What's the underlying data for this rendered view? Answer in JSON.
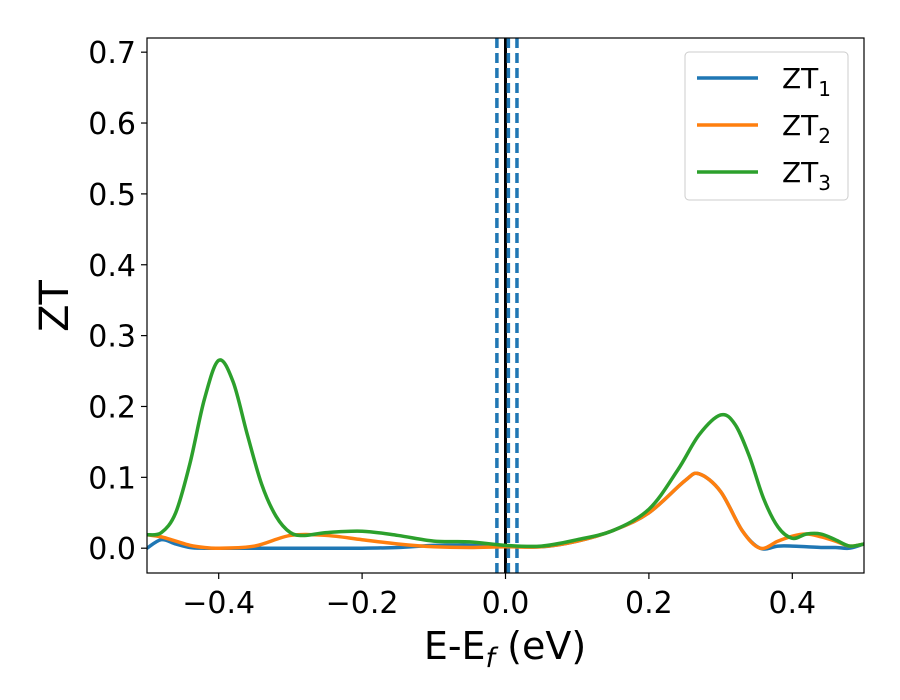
{
  "chart_data": {
    "type": "line",
    "xlabel": "E-E",
    "xlabel_sub": "f",
    "xlabel_unit": " (eV)",
    "ylabel": "ZT",
    "xlim": [
      -0.5,
      0.5
    ],
    "ylim": [
      -0.035,
      0.72
    ],
    "x_ticks": [
      -0.4,
      -0.2,
      0.0,
      0.2,
      0.4
    ],
    "x_tick_labels": [
      "−0.4",
      "−0.2",
      "0.0",
      "0.2",
      "0.4"
    ],
    "y_ticks": [
      0.0,
      0.1,
      0.2,
      0.3,
      0.4,
      0.5,
      0.6,
      0.7
    ],
    "y_tick_labels": [
      "0.0",
      "0.1",
      "0.2",
      "0.3",
      "0.4",
      "0.5",
      "0.6",
      "0.7"
    ],
    "grid": false,
    "legend_position": "top-right",
    "vertical_lines": [
      {
        "x": 0.0,
        "style": "solid",
        "color": "#000000"
      },
      {
        "x": -0.012,
        "style": "dashed",
        "color": "#1f77b4"
      },
      {
        "x": 0.004,
        "style": "dashed",
        "color": "#1f77b4"
      },
      {
        "x": 0.016,
        "style": "dashed",
        "color": "#1f77b4"
      }
    ],
    "series": [
      {
        "name": "ZT",
        "subscript": "1",
        "color": "#1f77b4",
        "x": [
          -0.5,
          -0.48,
          -0.46,
          -0.44,
          -0.42,
          -0.4,
          -0.35,
          -0.3,
          -0.25,
          -0.2,
          -0.15,
          -0.1,
          -0.05,
          0.0,
          0.05,
          0.1,
          0.15,
          0.2,
          0.25,
          0.27,
          0.3,
          0.33,
          0.355,
          0.38,
          0.4,
          0.42,
          0.44,
          0.46,
          0.48,
          0.5
        ],
        "y": [
          0.0,
          0.012,
          0.006,
          0.001,
          0.0,
          0.0,
          0.0,
          0.0,
          0.0,
          0.0,
          0.001,
          0.004,
          0.004,
          0.003,
          0.002,
          0.01,
          0.025,
          0.05,
          0.095,
          0.105,
          0.08,
          0.025,
          0.0,
          0.003,
          0.003,
          0.002,
          0.001,
          0.001,
          0.0,
          0.006
        ]
      },
      {
        "name": "ZT",
        "subscript": "2",
        "color": "#ff7f0e",
        "x": [
          -0.5,
          -0.48,
          -0.46,
          -0.44,
          -0.42,
          -0.4,
          -0.35,
          -0.3,
          -0.25,
          -0.2,
          -0.15,
          -0.1,
          -0.05,
          0.0,
          0.05,
          0.1,
          0.15,
          0.2,
          0.25,
          0.27,
          0.3,
          0.33,
          0.355,
          0.38,
          0.4,
          0.42,
          0.44,
          0.46,
          0.48,
          0.5
        ],
        "y": [
          0.019,
          0.016,
          0.01,
          0.004,
          0.001,
          0.0,
          0.003,
          0.018,
          0.018,
          0.012,
          0.006,
          0.002,
          0.001,
          0.002,
          0.002,
          0.01,
          0.025,
          0.05,
          0.095,
          0.105,
          0.08,
          0.025,
          0.0,
          0.01,
          0.017,
          0.02,
          0.016,
          0.01,
          0.003,
          0.006
        ]
      },
      {
        "name": "ZT",
        "subscript": "3",
        "color": "#2ca02c",
        "x": [
          -0.5,
          -0.48,
          -0.46,
          -0.44,
          -0.42,
          -0.4,
          -0.38,
          -0.36,
          -0.34,
          -0.32,
          -0.3,
          -0.28,
          -0.25,
          -0.2,
          -0.15,
          -0.1,
          -0.05,
          0.0,
          0.05,
          0.1,
          0.15,
          0.2,
          0.24,
          0.27,
          0.3,
          0.32,
          0.34,
          0.36,
          0.38,
          0.4,
          0.42,
          0.44,
          0.46,
          0.48,
          0.5
        ],
        "y": [
          0.019,
          0.022,
          0.05,
          0.12,
          0.21,
          0.265,
          0.235,
          0.16,
          0.09,
          0.045,
          0.022,
          0.018,
          0.022,
          0.024,
          0.018,
          0.01,
          0.009,
          0.004,
          0.003,
          0.012,
          0.025,
          0.055,
          0.11,
          0.16,
          0.188,
          0.175,
          0.13,
          0.07,
          0.03,
          0.014,
          0.02,
          0.02,
          0.012,
          0.003,
          0.006
        ]
      }
    ]
  }
}
